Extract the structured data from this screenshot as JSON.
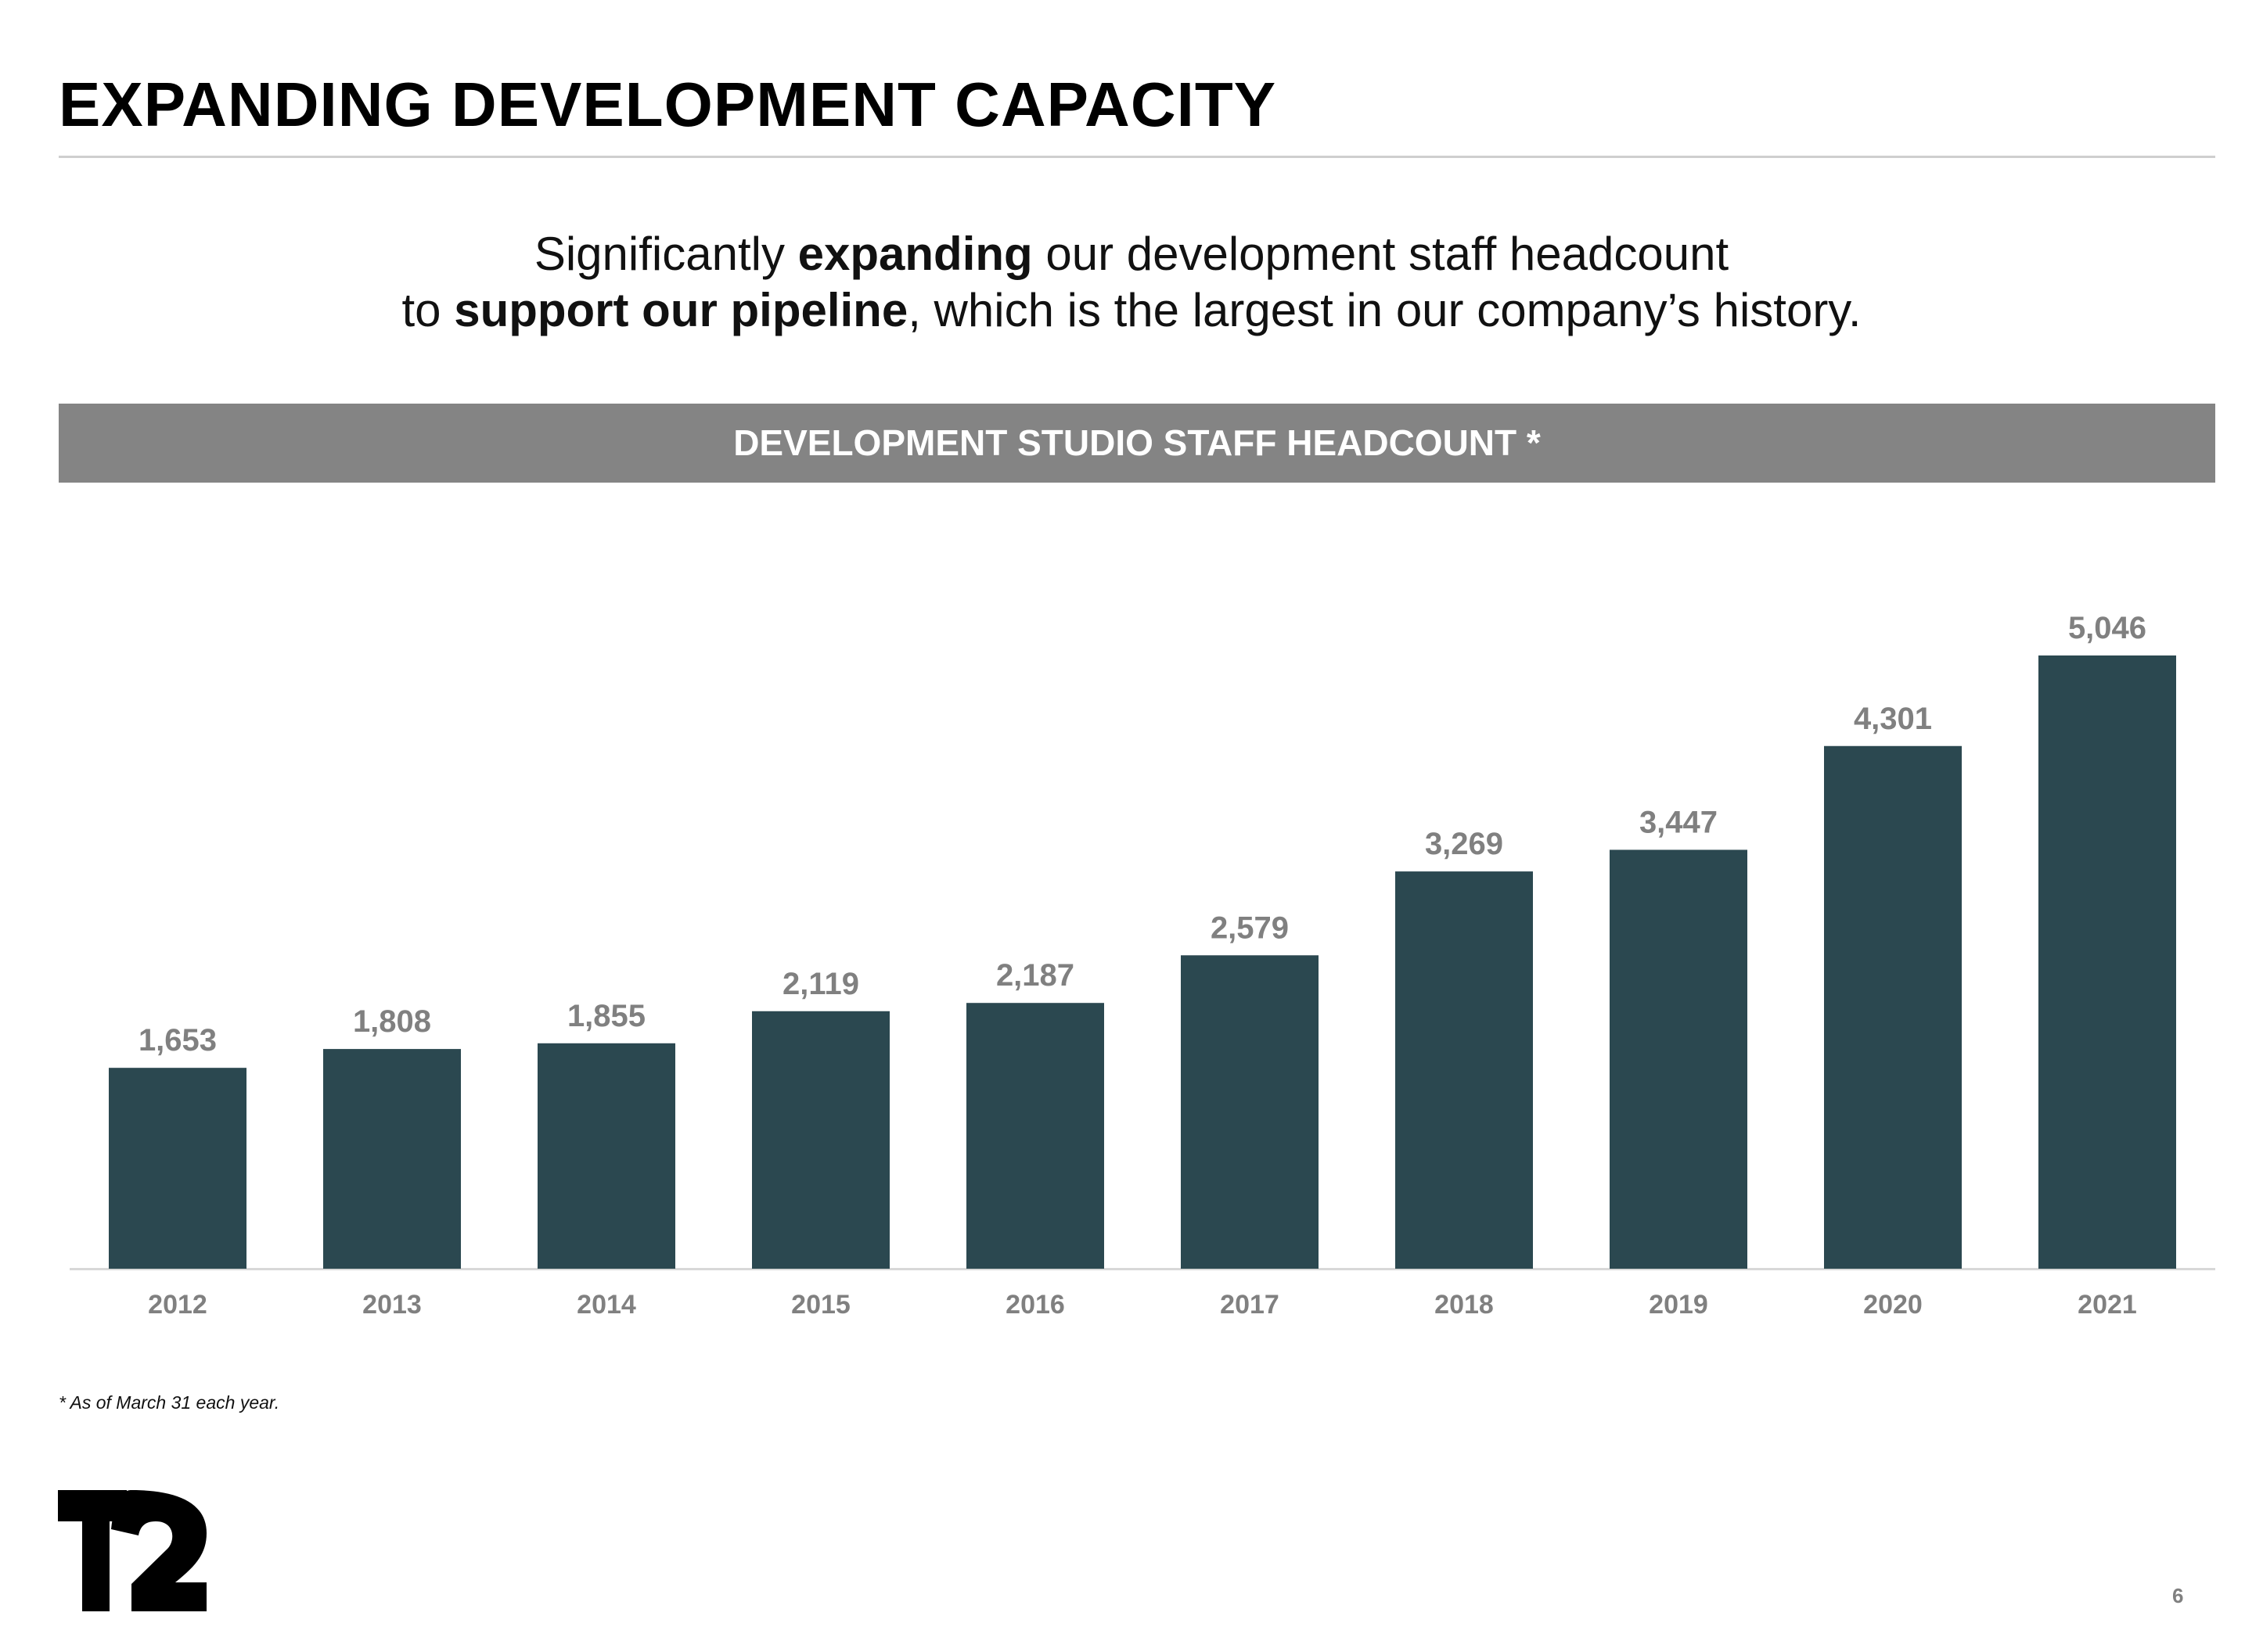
{
  "title": "EXPANDING DEVELOPMENT CAPACITY",
  "subtitle": {
    "line1_pre": "Significantly ",
    "line1_bold": "expanding",
    "line1_post": " our development staff headcount",
    "line2_pre": "to ",
    "line2_bold": "support our pipeline",
    "line2_post": ", which is the largest in our company’s history."
  },
  "band_title": "DEVELOPMENT STUDIO STAFF HEADCOUNT *",
  "chart_data": {
    "type": "bar",
    "title": "DEVELOPMENT STUDIO STAFF HEADCOUNT *",
    "categories": [
      "2012",
      "2013",
      "2014",
      "2015",
      "2016",
      "2017",
      "2018",
      "2019",
      "2020",
      "2021"
    ],
    "values": [
      1653,
      1808,
      1855,
      2119,
      2187,
      2579,
      3269,
      3447,
      4301,
      5046
    ],
    "labels": [
      "1,653",
      "1,808",
      "1,855",
      "2,119",
      "2,187",
      "2,579",
      "3,269",
      "3,447",
      "4,301",
      "5,046"
    ],
    "xlabel": "",
    "ylabel": "",
    "ylim": [
      0,
      5046
    ],
    "grid": false,
    "bar_color": "#2b4850",
    "label_color": "#808080"
  },
  "footnote": "* As of March 31 each year.",
  "logo_text": "T2",
  "page_number": "6"
}
